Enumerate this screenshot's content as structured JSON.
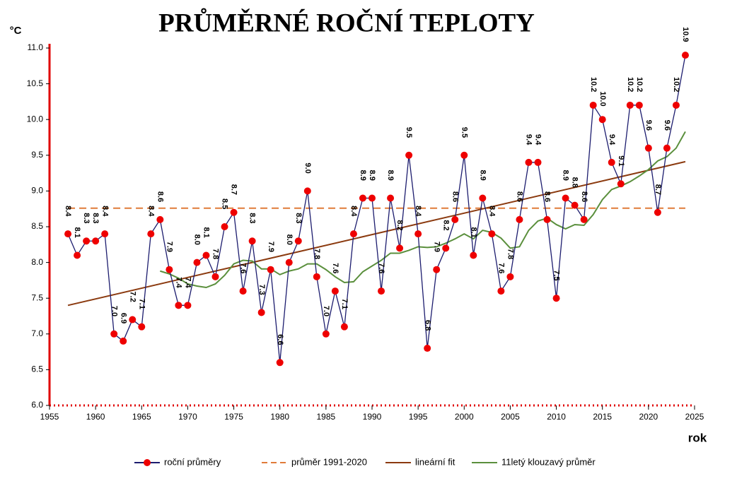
{
  "chart_data": {
    "type": "line",
    "title": "PRŮMĚRNÉ ROČNÍ TEPLOTY",
    "y_label": "°C",
    "x_label": "rok",
    "xlim": [
      1955,
      2025
    ],
    "xticks": [
      1955,
      1960,
      1965,
      1970,
      1975,
      1980,
      1985,
      1990,
      1995,
      2000,
      2005,
      2010,
      2015,
      2020,
      2025
    ],
    "ylim": [
      6,
      11
    ],
    "yticks": [
      {
        "value": 6,
        "label": "6.0"
      },
      {
        "value": 6.5,
        "label": "6.5"
      },
      {
        "value": 7,
        "label": "7.0"
      },
      {
        "value": 7.5,
        "label": "7.5"
      },
      {
        "value": 8,
        "label": "8.0"
      },
      {
        "value": 8.5,
        "label": "8.5"
      },
      {
        "value": 9,
        "label": "9.0"
      },
      {
        "value": 9.5,
        "label": "9.5"
      },
      {
        "value": 10,
        "label": "10.0"
      },
      {
        "value": 10.5,
        "label": "10.5"
      },
      {
        "value": 11,
        "label": "11.0"
      }
    ],
    "grid": false,
    "axis_color": "#e00000",
    "series": [
      {
        "name": "roční průměry",
        "color": "#1c1c6e",
        "marker_color": "#ee0000",
        "dash": false,
        "marker": true,
        "x": [
          1957,
          1958,
          1959,
          1960,
          1961,
          1962,
          1963,
          1964,
          1965,
          1966,
          1967,
          1968,
          1969,
          1970,
          1971,
          1972,
          1973,
          1974,
          1975,
          1976,
          1977,
          1978,
          1979,
          1980,
          1981,
          1982,
          1983,
          1984,
          1985,
          1986,
          1987,
          1988,
          1989,
          1990,
          1991,
          1992,
          1993,
          1994,
          1995,
          1996,
          1997,
          1998,
          1999,
          2000,
          2001,
          2002,
          2003,
          2004,
          2005,
          2006,
          2007,
          2008,
          2009,
          2010,
          2011,
          2012,
          2013,
          2014,
          2015,
          2016,
          2017,
          2018,
          2019,
          2020,
          2021,
          2022,
          2023,
          2024
        ],
        "values": [
          8.4,
          8.1,
          8.3,
          8.3,
          8.4,
          7.0,
          6.9,
          7.2,
          7.1,
          8.4,
          8.6,
          7.9,
          7.4,
          7.4,
          8.0,
          8.1,
          7.8,
          8.5,
          8.7,
          7.6,
          8.3,
          7.3,
          7.9,
          6.6,
          8.0,
          8.3,
          9.0,
          7.8,
          7.0,
          7.6,
          7.1,
          8.4,
          8.9,
          8.9,
          7.6,
          8.9,
          8.2,
          9.5,
          8.4,
          6.8,
          7.9,
          8.2,
          8.6,
          9.5,
          8.1,
          8.9,
          8.4,
          7.6,
          7.8,
          8.6,
          9.4,
          9.4,
          8.6,
          7.5,
          8.9,
          8.8,
          8.6,
          10.2,
          10.0,
          9.4,
          9.1,
          10.2,
          10.2,
          9.6,
          8.7,
          9.6,
          10.2,
          10.9
        ],
        "value_labels": [
          "8.4",
          "8.1",
          "8.3",
          "8.3",
          "8.4",
          "7.0",
          "6.9",
          "7.2",
          "7.1",
          "8.4",
          "8.6",
          "7.9",
          "7.4",
          "7.4",
          "8.0",
          "8.1",
          "7.8",
          "8.5",
          "8.7",
          "7.6",
          "8.3",
          "7.3",
          "7.9",
          "6.6",
          "8.0",
          "8.3",
          "9.0",
          "7.8",
          "7.0",
          "7.6",
          "7.1",
          "8.4",
          "8.9",
          "8.9",
          "7.6",
          "8.9",
          "8.2",
          "9.5",
          "8.4",
          "6.8",
          "7.9",
          "8.2",
          "8.6",
          "9.5",
          "8.1",
          "8.9",
          "8.4",
          "7.6",
          "7.8",
          "8.6",
          "9.4",
          "9.4",
          "8.6",
          "7.5",
          "8.9",
          "8.8",
          "8.6",
          "10.2",
          "10.0",
          "9.4",
          "9.1",
          "10.2",
          "10.2",
          "9.6",
          "8.7",
          "9.6",
          "10.2",
          "10.9"
        ]
      },
      {
        "name": "průměr 1991-2020",
        "color": "#e07b39",
        "dash": true,
        "marker": false,
        "x": [
          1957,
          2024
        ],
        "values": [
          8.76,
          8.76
        ]
      },
      {
        "name": "lineární fit",
        "color": "#8b3a0f",
        "dash": false,
        "marker": false,
        "x": [
          1957,
          2024
        ],
        "values": [
          7.4,
          9.41
        ]
      },
      {
        "name": "11letý klouzavý průměr",
        "color": "#5a8f3c",
        "dash": false,
        "marker": false,
        "x": [
          1967,
          1968,
          1969,
          1970,
          1971,
          1972,
          1973,
          1974,
          1975,
          1976,
          1977,
          1978,
          1979,
          1980,
          1981,
          1982,
          1983,
          1984,
          1985,
          1986,
          1987,
          1988,
          1989,
          1990,
          1991,
          1992,
          1993,
          1994,
          1995,
          1996,
          1997,
          1998,
          1999,
          2000,
          2001,
          2002,
          2003,
          2004,
          2005,
          2006,
          2007,
          2008,
          2009,
          2010,
          2011,
          2012,
          2013,
          2014,
          2015,
          2016,
          2017,
          2018,
          2019,
          2020,
          2021,
          2022,
          2023,
          2024
        ],
        "values": [
          7.88,
          7.84,
          7.78,
          7.7,
          7.67,
          7.65,
          7.7,
          7.82,
          7.98,
          8.03,
          8.02,
          7.91,
          7.91,
          7.83,
          7.88,
          7.91,
          7.98,
          7.98,
          7.9,
          7.8,
          7.72,
          7.73,
          7.87,
          7.95,
          8.03,
          8.13,
          8.13,
          8.17,
          8.22,
          8.21,
          8.22,
          8.27,
          8.33,
          8.4,
          8.33,
          8.45,
          8.42,
          8.34,
          8.2,
          8.22,
          8.45,
          8.58,
          8.62,
          8.53,
          8.47,
          8.53,
          8.52,
          8.67,
          8.88,
          9.02,
          9.07,
          9.13,
          9.21,
          9.3,
          9.42,
          9.48,
          9.6,
          9.83
        ]
      }
    ]
  }
}
